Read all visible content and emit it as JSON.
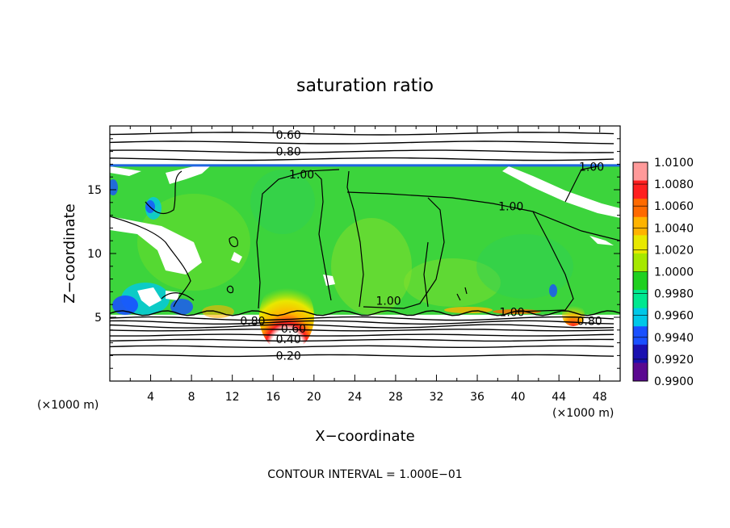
{
  "chart_data": {
    "type": "heatmap",
    "title": "saturation ratio",
    "xlabel": "X−coordinate",
    "ylabel": "Z−coordinate",
    "x_unit_left": "(×1000 m)",
    "x_unit_right": "(×1000 m)",
    "xlim": [
      0,
      50
    ],
    "ylim": [
      0,
      20
    ],
    "x_ticks": [
      4,
      8,
      12,
      16,
      20,
      24,
      28,
      32,
      36,
      40,
      44,
      48
    ],
    "y_ticks": [
      5,
      10,
      15
    ],
    "footer": "CONTOUR INTERVAL = 1.000E−01",
    "contour_labels": [
      {
        "text": "0.60",
        "x": 17.5,
        "y": 19.3
      },
      {
        "text": "0.80",
        "x": 17.5,
        "y": 18.0
      },
      {
        "text": "1.00",
        "x": 18.8,
        "y": 16.2
      },
      {
        "text": "1.00",
        "x": 47.2,
        "y": 16.8
      },
      {
        "text": "1.00",
        "x": 39.3,
        "y": 13.7
      },
      {
        "text": "1.00",
        "x": 27.3,
        "y": 6.3
      },
      {
        "text": "1.00",
        "x": 39.4,
        "y": 5.4
      },
      {
        "text": "0.80",
        "x": 14.0,
        "y": 4.7
      },
      {
        "text": "0.80",
        "x": 47.0,
        "y": 4.7
      },
      {
        "text": "0.60",
        "x": 18.0,
        "y": 4.1
      },
      {
        "text": "0.40",
        "x": 17.5,
        "y": 3.3
      },
      {
        "text": "0.20",
        "x": 17.5,
        "y": 2.0
      }
    ],
    "colorbar": {
      "levels": [
        "1.0100",
        "1.0080",
        "1.0060",
        "1.0040",
        "1.0020",
        "1.0000",
        "0.9980",
        "0.9960",
        "0.9940",
        "0.9920",
        "0.9900"
      ],
      "colors": [
        "#ff9a9a",
        "#ff2020",
        "#ff6a00",
        "#ffb300",
        "#e8e800",
        "#a6e800",
        "#20d020",
        "#00e890",
        "#00c8e8",
        "#1a50ff",
        "#1a10b0",
        "#5a0890"
      ]
    },
    "regions": {
      "supersat_base_z": 5.2,
      "supersat_top_z": 17.0,
      "clear_color": "#ffffff",
      "field_color": "#3cd43c"
    }
  }
}
